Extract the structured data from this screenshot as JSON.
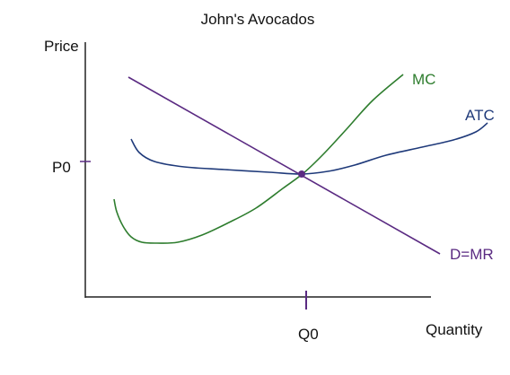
{
  "chart_data": {
    "type": "line",
    "title": "John's Avocados",
    "xlabel": "Quantity",
    "ylabel": "Price",
    "ticks": {
      "x": "Q0",
      "y": "P0"
    },
    "grid": false,
    "series": [
      {
        "name": "MC",
        "color": "#2e7d2e",
        "points": [
          [
            127,
            222
          ],
          [
            130,
            236
          ],
          [
            137,
            252
          ],
          [
            146,
            264
          ],
          [
            158,
            270
          ],
          [
            175,
            271
          ],
          [
            198,
            270
          ],
          [
            225,
            262
          ],
          [
            255,
            248
          ],
          [
            285,
            232
          ],
          [
            315,
            210
          ],
          [
            338,
            193
          ],
          [
            360,
            172
          ],
          [
            385,
            145
          ],
          [
            415,
            112
          ],
          [
            449,
            83
          ]
        ]
      },
      {
        "name": "ATC",
        "color": "#1f3a7a",
        "points": [
          [
            146,
            155
          ],
          [
            155,
            170
          ],
          [
            172,
            180
          ],
          [
            205,
            186
          ],
          [
            250,
            189
          ],
          [
            300,
            192
          ],
          [
            335,
            194
          ],
          [
            365,
            191
          ],
          [
            395,
            184
          ],
          [
            430,
            173
          ],
          [
            470,
            164
          ],
          [
            505,
            156
          ],
          [
            530,
            147
          ],
          [
            543,
            137
          ]
        ]
      },
      {
        "name": "D=MR",
        "color": "#5a2a82",
        "points": [
          [
            143,
            86
          ],
          [
            490,
            283
          ]
        ]
      }
    ],
    "equilibrium": {
      "color": "#5a2a82"
    }
  }
}
